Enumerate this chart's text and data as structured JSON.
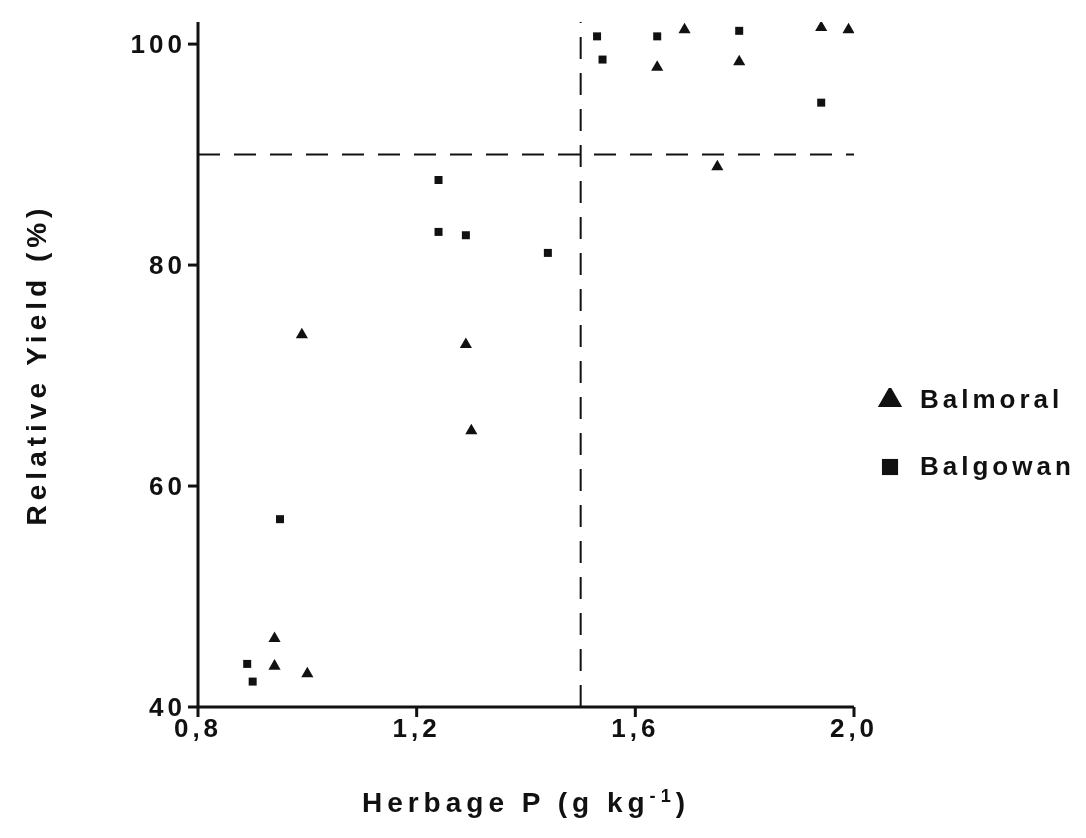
{
  "chart_data": {
    "type": "scatter",
    "xlabel": "Herbage P (g kg$^{-1}$)",
    "ylabel": "Relative Yield (%)",
    "xlim": [
      0.8,
      2.0
    ],
    "xticks": [
      {
        "value": 0.8,
        "label": "0,8"
      },
      {
        "value": 1.2,
        "label": "1,2"
      },
      {
        "value": 1.6,
        "label": "1,6"
      },
      {
        "value": 2.0,
        "label": "2,0"
      }
    ],
    "ylim": [
      40,
      102
    ],
    "yticks": [
      40,
      60,
      80,
      100
    ],
    "grid": false,
    "legend": "right",
    "series": [
      {
        "name": "Balmoral",
        "color": "#111111",
        "marker": "triangle",
        "x": [
          0.99,
          0.94,
          0.94,
          1.0,
          1.29,
          1.3,
          1.69,
          1.64,
          1.79,
          1.75,
          1.94,
          1.99
        ],
        "values": [
          73.7,
          46.2,
          43.7,
          43.0,
          72.8,
          65.0,
          101.3,
          97.9,
          98.4,
          88.9,
          101.5,
          101.3
        ]
      },
      {
        "name": "Balgowan",
        "color": "#111111",
        "marker": "square",
        "x": [
          0.89,
          0.9,
          0.95,
          1.24,
          1.24,
          1.29,
          1.44,
          1.53,
          1.54,
          1.64,
          1.79,
          1.94
        ],
        "values": [
          43.9,
          42.3,
          57.0,
          87.7,
          83.0,
          82.7,
          81.1,
          100.7,
          98.6,
          100.7,
          101.2,
          94.7
        ]
      }
    ],
    "ref_lines": [
      {
        "axis": "x",
        "value": 1.5,
        "line_style": "dashed"
      },
      {
        "axis": "y",
        "value": 90,
        "line_style": "dashed"
      }
    ]
  }
}
